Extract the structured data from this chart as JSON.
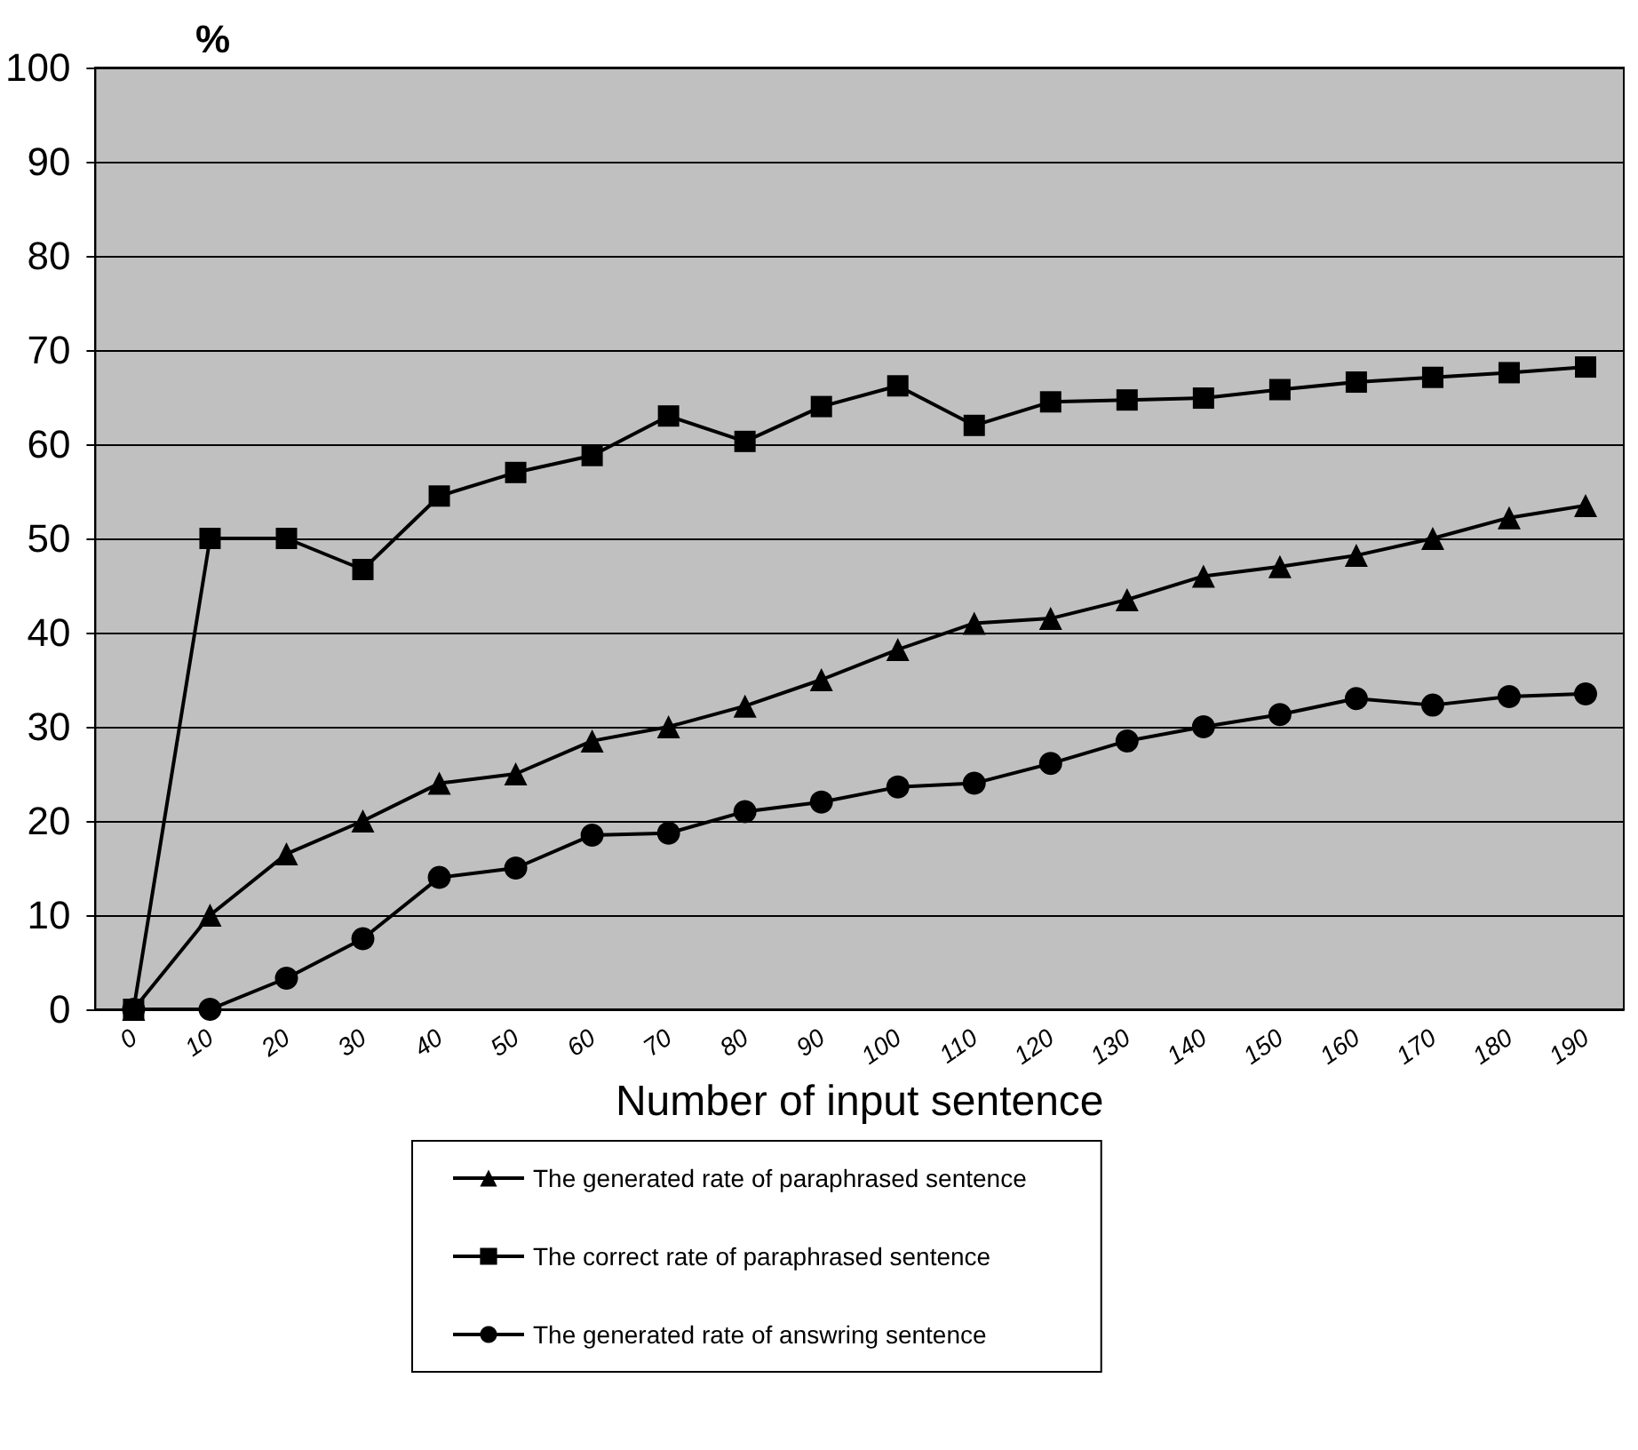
{
  "chart_data": {
    "type": "line",
    "ylabel": "%",
    "xlabel": "Number of input sentence",
    "categories": [
      "0",
      "10",
      "20",
      "30",
      "40",
      "50",
      "60",
      "70",
      "80",
      "90",
      "100",
      "110",
      "120",
      "130",
      "140",
      "150",
      "160",
      "170",
      "180",
      "190"
    ],
    "series": [
      {
        "name": "The generated rate of paraphrased sentence",
        "color": "#000000",
        "marker": "triangle",
        "values": [
          0,
          10,
          16.5,
          20,
          24,
          25,
          28.5,
          30,
          32.2,
          35,
          38.2,
          41,
          41.5,
          43.5,
          46,
          47,
          48.2,
          50,
          52.2,
          53.5
        ]
      },
      {
        "name": "The correct rate of paraphrased sentence",
        "color": "#000000",
        "marker": "square",
        "values": [
          0,
          50,
          50,
          46.7,
          54.5,
          57,
          58.8,
          63,
          60.3,
          64,
          66.2,
          62,
          64.5,
          64.7,
          64.9,
          65.8,
          66.6,
          67.1,
          67.6,
          68.2
        ]
      },
      {
        "name": "The generated rate of answring sentence",
        "color": "#000000",
        "marker": "circle",
        "values": [
          0,
          0,
          3.3,
          7.5,
          14,
          15,
          18.5,
          18.7,
          21,
          22,
          23.6,
          24,
          26.1,
          28.5,
          30,
          31.3,
          33,
          32.3,
          33.2,
          33.5
        ]
      }
    ],
    "ylim": [
      0,
      100
    ],
    "yticks": [
      0,
      10,
      20,
      30,
      40,
      50,
      60,
      70,
      80,
      90,
      100
    ],
    "grid": "y",
    "legend": "bottom",
    "line_style": "solid"
  }
}
